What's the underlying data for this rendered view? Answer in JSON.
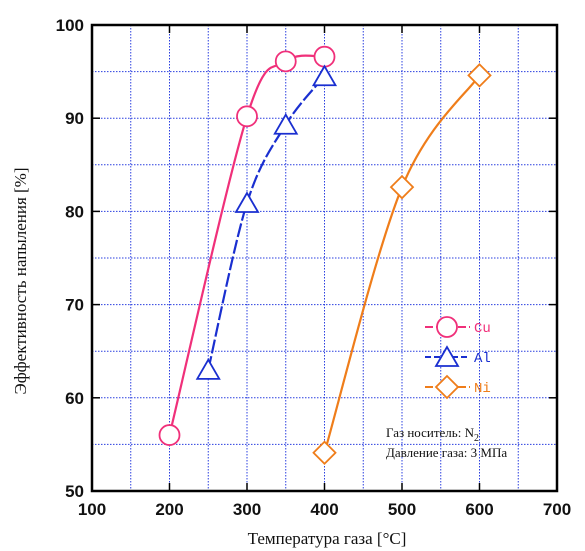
{
  "chart_data": {
    "type": "line",
    "xlabel": "Температура газа [°C]",
    "ylabel": "Эффективность напыления [%]",
    "xlim": [
      100,
      700
    ],
    "ylim": [
      50,
      100
    ],
    "xticks": [
      100,
      200,
      300,
      400,
      500,
      600,
      700
    ],
    "yticks": [
      50,
      60,
      70,
      80,
      90,
      100
    ],
    "grid": true,
    "legend_position": "right",
    "series": [
      {
        "name": "Cu",
        "marker": "circle",
        "color": "#f0307a",
        "x": [
          200,
          300,
          350,
          400
        ],
        "y": [
          56,
          90.2,
          96.1,
          96.6
        ]
      },
      {
        "name": "Al",
        "marker": "triangle",
        "color": "#1a2fd0",
        "x": [
          250,
          300,
          350,
          400
        ],
        "y": [
          63,
          80.9,
          89.3,
          94.5
        ]
      },
      {
        "name": "Ni",
        "marker": "diamond",
        "color": "#ef7d1a",
        "x": [
          400,
          500,
          600
        ],
        "y": [
          54.1,
          82.6,
          94.6
        ]
      }
    ],
    "annotation": {
      "line1_main": "Газ носитель: N",
      "line1_sub": "2",
      "line2": "Давление газа: 3 МПа"
    }
  }
}
